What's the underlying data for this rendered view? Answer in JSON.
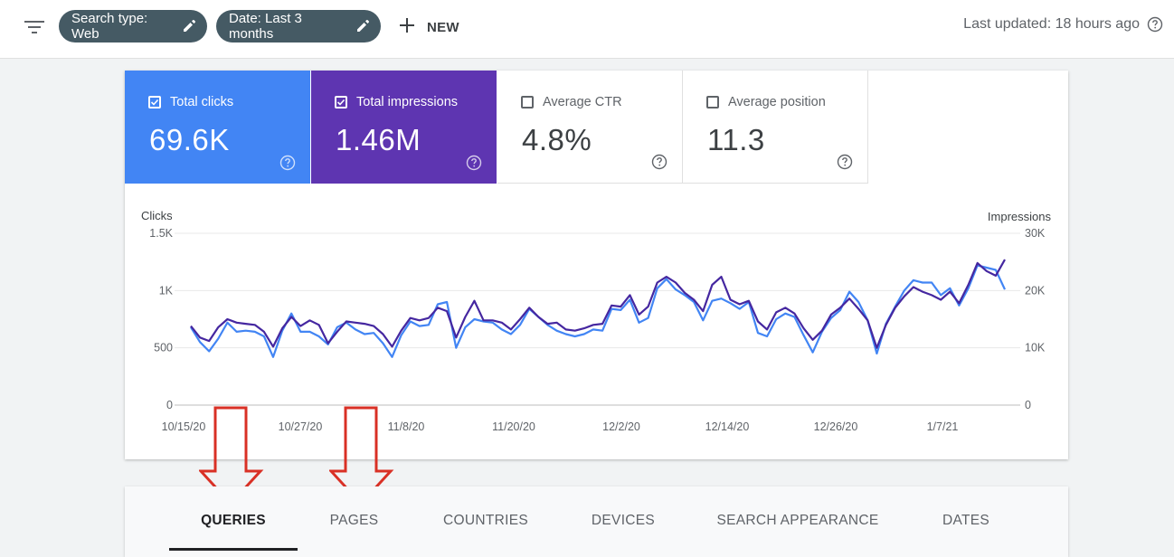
{
  "toolbar": {
    "filter_icon": "filter-list-icon",
    "chips": [
      {
        "label": "Search type: Web",
        "icon": "pencil-icon"
      },
      {
        "label": "Date: Last 3 months",
        "icon": "pencil-icon"
      }
    ],
    "new_label": "NEW",
    "last_updated": "Last updated: 18 hours ago"
  },
  "metrics": [
    {
      "label": "Total clicks",
      "value": "69.6K",
      "checked": true,
      "color": "#4285f4"
    },
    {
      "label": "Total impressions",
      "value": "1.46M",
      "checked": true,
      "color": "#5e35b1"
    },
    {
      "label": "Average CTR",
      "value": "4.8%",
      "checked": false
    },
    {
      "label": "Average position",
      "value": "11.3",
      "checked": false
    }
  ],
  "chart_data": {
    "type": "line",
    "left_axis_title": "Clicks",
    "right_axis_title": "Impressions",
    "left_ticks": [
      "0",
      "500",
      "1K",
      "1.5K"
    ],
    "right_ticks": [
      "0",
      "10K",
      "20K",
      "30K"
    ],
    "ylim_left": [
      0,
      1500
    ],
    "ylim_right": [
      0,
      30000
    ],
    "x_tick_labels": [
      "10/15/20",
      "10/27/20",
      "11/8/20",
      "11/20/20",
      "12/2/20",
      "12/14/20",
      "12/26/20",
      "1/7/21"
    ],
    "grid": true,
    "series": [
      {
        "name": "Clicks",
        "axis": "left",
        "color": "#4285f4",
        "values": [
          680,
          550,
          470,
          580,
          720,
          640,
          650,
          640,
          600,
          420,
          650,
          800,
          640,
          640,
          600,
          530,
          680,
          720,
          660,
          620,
          630,
          540,
          420,
          610,
          730,
          690,
          700,
          880,
          900,
          500,
          680,
          750,
          730,
          720,
          660,
          620,
          700,
          840,
          770,
          700,
          650,
          620,
          600,
          620,
          660,
          650,
          840,
          830,
          920,
          720,
          760,
          1020,
          1100,
          1010,
          960,
          900,
          740,
          910,
          930,
          890,
          840,
          900,
          630,
          600,
          750,
          800,
          770,
          610,
          460,
          640,
          760,
          830,
          990,
          900,
          740,
          450,
          710,
          860,
          1000,
          1090,
          1070,
          1070,
          960,
          1020,
          870,
          1020,
          1220,
          1200,
          1180,
          1010
        ]
      },
      {
        "name": "Impressions",
        "axis": "right",
        "color": "#4527a0",
        "values": [
          13800,
          11800,
          11200,
          13600,
          15000,
          14400,
          14200,
          14000,
          12800,
          10200,
          13400,
          15400,
          13800,
          14800,
          14000,
          10800,
          12800,
          14600,
          14400,
          14200,
          13800,
          12400,
          10200,
          13000,
          15200,
          14800,
          15200,
          17000,
          16400,
          11800,
          15400,
          18200,
          14800,
          14800,
          14400,
          13200,
          15000,
          17000,
          15400,
          14200,
          14400,
          13200,
          13000,
          13400,
          14000,
          14200,
          17400,
          17200,
          19200,
          15800,
          17200,
          21400,
          22400,
          21400,
          19600,
          18400,
          16400,
          21000,
          22400,
          18400,
          17600,
          18200,
          14600,
          13200,
          16200,
          17000,
          16000,
          13400,
          11400,
          13000,
          15800,
          17000,
          18600,
          16800,
          14800,
          10000,
          14000,
          17000,
          19000,
          20600,
          19800,
          19200,
          18400,
          19800,
          17800,
          21000,
          24800,
          23400,
          22600,
          25400
        ]
      }
    ]
  },
  "tabs": [
    {
      "label": "QUERIES",
      "active": true
    },
    {
      "label": "PAGES",
      "active": false
    },
    {
      "label": "COUNTRIES",
      "active": false
    },
    {
      "label": "DEVICES",
      "active": false
    },
    {
      "label": "SEARCH APPEARANCE",
      "active": false
    },
    {
      "label": "DATES",
      "active": false
    }
  ],
  "annotations": {
    "arrow_color": "#d93025",
    "arrow_icon": "down-arrow-icon"
  }
}
